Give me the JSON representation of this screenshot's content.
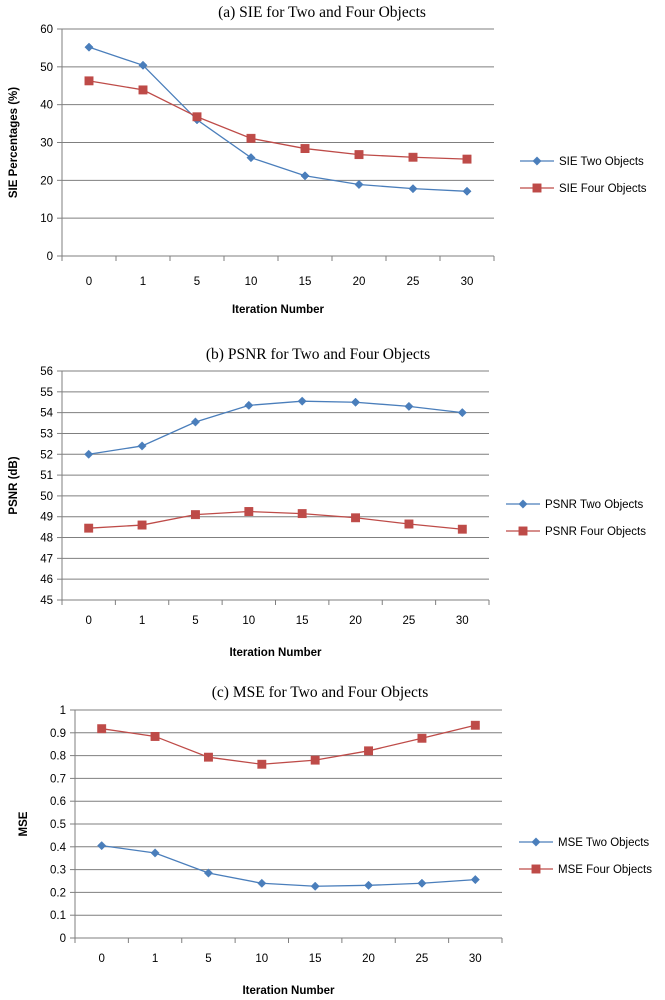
{
  "chart_data": [
    {
      "type": "line",
      "title": "(a) SIE for Two and Four Objects",
      "xlabel": "Iteration Number",
      "ylabel": "SIE Percentages (%)",
      "categories": [
        "0",
        "1",
        "5",
        "10",
        "15",
        "20",
        "25",
        "30"
      ],
      "ylim": [
        0,
        60
      ],
      "yticks": [
        0,
        10,
        20,
        30,
        40,
        50,
        60
      ],
      "grid": "horizontal",
      "legend_position": "right",
      "series": [
        {
          "name": "SIE Two Objects",
          "color": "#4a7ebb",
          "marker": "diamond",
          "values": [
            55.2,
            50.4,
            36.0,
            26.0,
            21.2,
            18.9,
            17.8,
            17.1
          ]
        },
        {
          "name": "SIE Four Objects",
          "color": "#be4b48",
          "marker": "square",
          "values": [
            46.3,
            43.9,
            36.8,
            31.1,
            28.4,
            26.8,
            26.1,
            25.6
          ]
        }
      ]
    },
    {
      "type": "line",
      "title": "(b) PSNR for Two and Four Objects",
      "xlabel": "Iteration Number",
      "ylabel": "PSNR (dB)",
      "categories": [
        "0",
        "1",
        "5",
        "10",
        "15",
        "20",
        "25",
        "30"
      ],
      "ylim": [
        45,
        56
      ],
      "yticks": [
        45,
        46,
        47,
        48,
        49,
        50,
        51,
        52,
        53,
        54,
        55,
        56
      ],
      "grid": "horizontal",
      "legend_position": "right",
      "series": [
        {
          "name": "PSNR Two Objects",
          "color": "#4a7ebb",
          "marker": "diamond",
          "values": [
            52.0,
            52.4,
            53.55,
            54.35,
            54.55,
            54.5,
            54.3,
            54.0
          ]
        },
        {
          "name": "PSNR Four Objects",
          "color": "#be4b48",
          "marker": "square",
          "values": [
            48.45,
            48.6,
            49.1,
            49.25,
            49.15,
            48.95,
            48.65,
            48.4
          ]
        }
      ]
    },
    {
      "type": "line",
      "title": "(c) MSE for Two and Four Objects",
      "xlabel": "Iteration Number",
      "ylabel": "MSE",
      "categories": [
        "0",
        "1",
        "5",
        "10",
        "15",
        "20",
        "25",
        "30"
      ],
      "ylim": [
        0,
        1
      ],
      "yticks": [
        "0",
        "0.1",
        "0.2",
        "0.3",
        "0.4",
        "0.5",
        "0.6",
        "0.7",
        "0.8",
        "0.9",
        "1"
      ],
      "grid": "horizontal",
      "legend_position": "right",
      "series": [
        {
          "name": "MSE Two Objects",
          "color": "#4a7ebb",
          "marker": "diamond",
          "values": [
            0.405,
            0.373,
            0.285,
            0.24,
            0.227,
            0.231,
            0.24,
            0.256
          ]
        },
        {
          "name": "MSE Four Objects",
          "color": "#be4b48",
          "marker": "square",
          "values": [
            0.918,
            0.884,
            0.793,
            0.762,
            0.78,
            0.821,
            0.876,
            0.933
          ]
        }
      ]
    }
  ]
}
